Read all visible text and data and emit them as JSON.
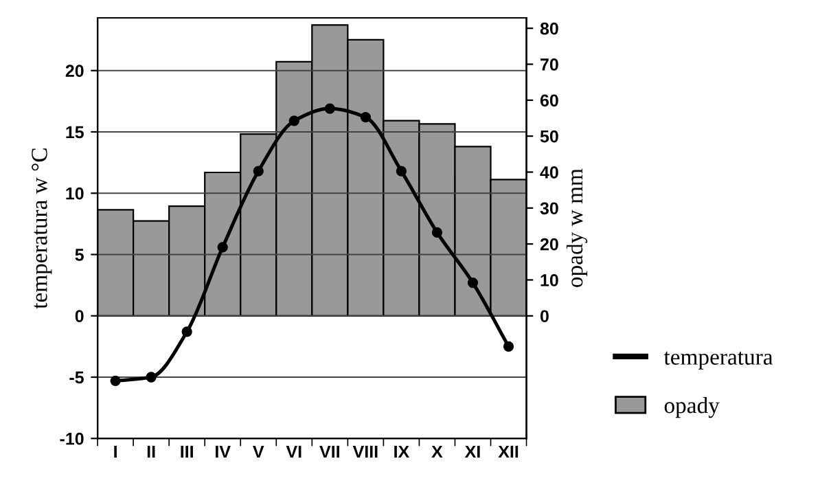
{
  "chart_data": {
    "type": "bar",
    "categories": [
      "I",
      "II",
      "III",
      "IV",
      "V",
      "VI",
      "VII",
      "VIII",
      "IX",
      "X",
      "XI",
      "XII"
    ],
    "series": [
      {
        "name": "opady",
        "axis": "y2",
        "color": "#999999",
        "values": [
          29.5,
          26.4,
          30.5,
          39.9,
          50.6,
          70.7,
          80.9,
          76.8,
          54.3,
          53.4,
          47.1,
          37.9
        ]
      },
      {
        "name": "temperatura",
        "type": "line",
        "axis": "y",
        "color": "#000000",
        "marker": "circle",
        "values": [
          -5.3,
          -5.0,
          -1.3,
          5.6,
          11.8,
          15.9,
          16.9,
          16.2,
          11.8,
          6.8,
          2.7,
          -2.5
        ]
      }
    ],
    "ylabel": "temperatura w °C",
    "y2label": "opady w mm",
    "ylim": [
      -10,
      24.3
    ],
    "yticks": [
      -10,
      -5,
      0,
      5,
      10,
      15,
      20
    ],
    "y2lim": [
      -34.1,
      82.9
    ],
    "y2ticks": [
      0,
      10,
      20,
      30,
      40,
      50,
      60,
      70,
      80
    ],
    "grid": "y",
    "legend": "bottom right"
  }
}
